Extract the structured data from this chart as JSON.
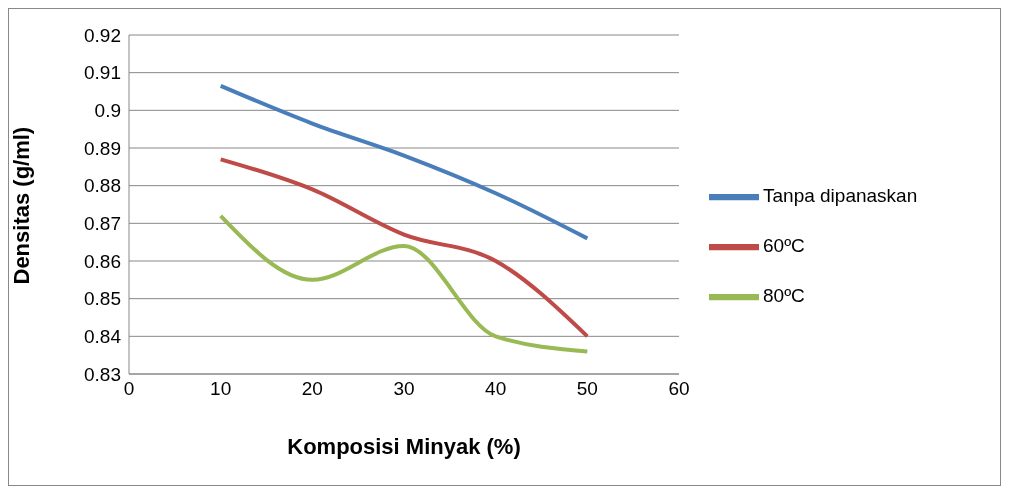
{
  "chart_data": {
    "type": "line",
    "xlabel": "Komposisi Minyak (%)",
    "ylabel": "Densitas (g/ml)",
    "x": [
      10,
      20,
      30,
      40,
      50
    ],
    "series": [
      {
        "name": "Tanpa dipanaskan",
        "color": "#4a7ebb",
        "values": [
          0.9065,
          0.8965,
          0.888,
          0.878,
          0.866
        ]
      },
      {
        "name": "60ºC",
        "color": "#be4b48",
        "values": [
          0.887,
          0.879,
          0.867,
          0.86,
          0.84
        ]
      },
      {
        "name": "80ºC",
        "color": "#98b954",
        "values": [
          0.872,
          0.855,
          0.864,
          0.84,
          0.836
        ]
      }
    ],
    "xlim": [
      0,
      60
    ],
    "xticks": [
      0,
      10,
      20,
      30,
      40,
      50,
      60
    ],
    "ylim": [
      0.83,
      0.92
    ],
    "yticks": [
      0.83,
      0.84,
      0.85,
      0.86,
      0.87,
      0.88,
      0.89,
      0.9,
      0.91,
      0.92
    ],
    "grid": "y",
    "legend": "right",
    "marker": "none",
    "line_style": "solid"
  }
}
